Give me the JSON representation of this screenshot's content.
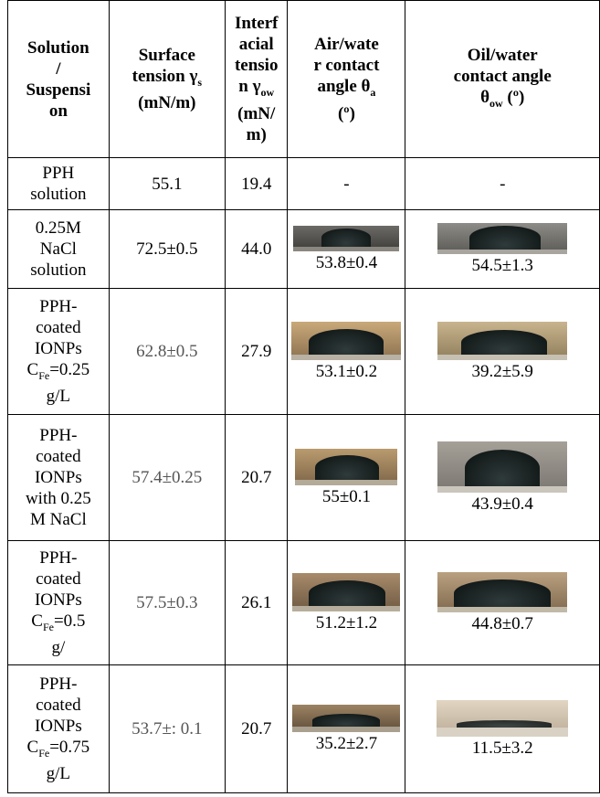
{
  "headers": {
    "col1": "Solution / Suspension",
    "col2": "Surface tension γs (mN/m)",
    "col3": "Interfacial tension γow (mN/m)",
    "col4": "Air/water contact angle θa (º)",
    "col5": "Oil/water contact angle θow (º)"
  },
  "rows": [
    {
      "solution": "PPH solution",
      "surface": "55.1",
      "interfacial": "19.4",
      "air_angle": "-",
      "oil_angle": "-"
    },
    {
      "solution": "0.25M NaCl solution",
      "surface": "72.5±0.5",
      "interfacial": "44.0",
      "air_angle": "53.8±0.4",
      "oil_angle": "54.5±1.3"
    },
    {
      "solution": "PPH-coated IONPs CFe=0.25 g/L",
      "surface": "62.8±0.5",
      "interfacial": "27.9",
      "air_angle": "53.1±0.2",
      "oil_angle": "39.2±5.9"
    },
    {
      "solution": "PPH-coated IONPs with 0.25 M NaCl",
      "surface": "57.4±0.25",
      "interfacial": "20.7",
      "air_angle": "55±0.1",
      "oil_angle": "43.9±0.4"
    },
    {
      "solution": "PPH-coated IONPs CFe=0.5 g/",
      "surface": "57.5±0.3",
      "interfacial": "26.1",
      "air_angle": "51.2±1.2",
      "oil_angle": "44.8±0.7"
    },
    {
      "solution": "PPH-coated IONPs CFe=0.75 g/L",
      "surface": "53.7±: 0.1",
      "interfacial": "20.7",
      "air_angle": "35.2±2.7",
      "oil_angle": "11.5±3.2"
    }
  ]
}
